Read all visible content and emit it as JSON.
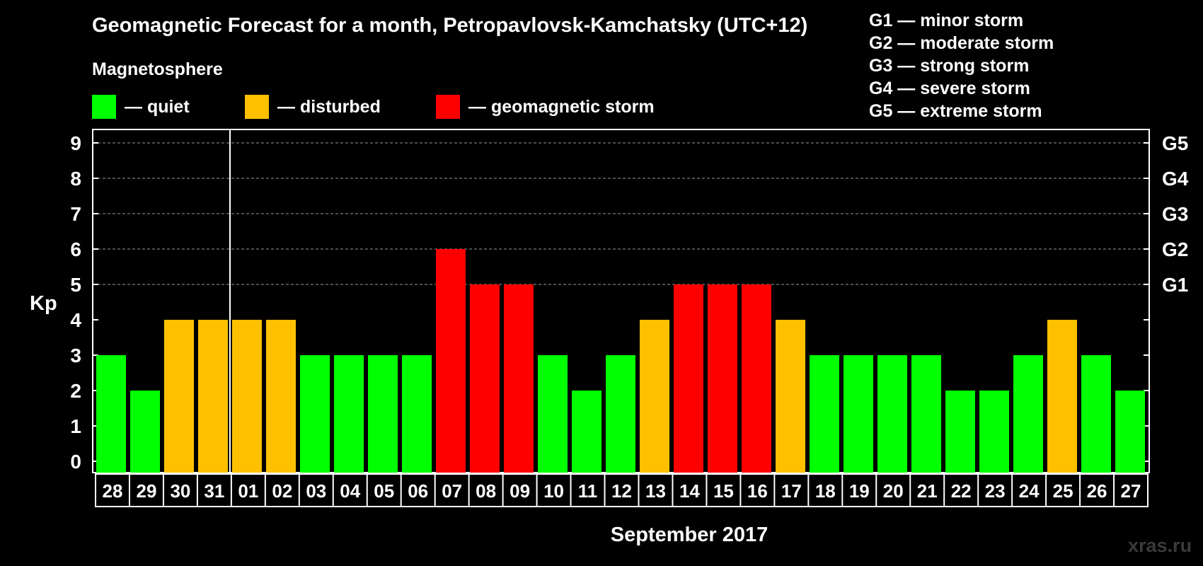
{
  "title": "Geomagnetic Forecast for a month, Petropavlovsk-Kamchatsky (UTC+12)",
  "legend": {
    "heading": "Magnetosphere",
    "items": [
      {
        "label": "— quiet",
        "color": "#00ff00"
      },
      {
        "label": "— disturbed",
        "color": "#ffc000"
      },
      {
        "label": "— geomagnetic storm",
        "color": "#ff0000"
      }
    ]
  },
  "storm_scale": [
    "G1 — minor storm",
    "G2 — moderate storm",
    "G3 — strong storm",
    "G4 — severe storm",
    "G5 — extreme storm"
  ],
  "watermark": "xras.ru",
  "chart_data": {
    "type": "bar",
    "title": "Geomagnetic Forecast for a month, Petropavlovsk-Kamchatsky (UTC+12)",
    "xlabel": "September 2017",
    "ylabel": "Kp",
    "ylim": [
      0,
      9
    ],
    "yticks": [
      "0",
      "1",
      "2",
      "3",
      "4",
      "5",
      "6",
      "7",
      "8",
      "9"
    ],
    "right_axis_labels": [
      {
        "kp": 5,
        "label": "G1"
      },
      {
        "kp": 6,
        "label": "G2"
      },
      {
        "kp": 7,
        "label": "G3"
      },
      {
        "kp": 8,
        "label": "G4"
      },
      {
        "kp": 9,
        "label": "G5"
      }
    ],
    "grid": true,
    "month_divider_after": "31",
    "categories": [
      "28",
      "29",
      "30",
      "31",
      "01",
      "02",
      "03",
      "04",
      "05",
      "06",
      "07",
      "08",
      "09",
      "10",
      "11",
      "12",
      "13",
      "14",
      "15",
      "16",
      "17",
      "18",
      "19",
      "20",
      "21",
      "22",
      "23",
      "24",
      "25",
      "26",
      "27"
    ],
    "values": [
      3,
      2,
      4,
      4,
      4,
      4,
      3,
      3,
      3,
      3,
      6,
      5,
      5,
      3,
      2,
      3,
      4,
      5,
      5,
      5,
      4,
      3,
      3,
      3,
      3,
      2,
      2,
      3,
      4,
      3,
      2
    ],
    "colors": {
      "quiet": "#00ff00",
      "disturbed": "#ffc000",
      "storm": "#ff0000"
    },
    "class_thresholds": {
      "disturbed_from": 4,
      "storm_from": 5
    }
  }
}
